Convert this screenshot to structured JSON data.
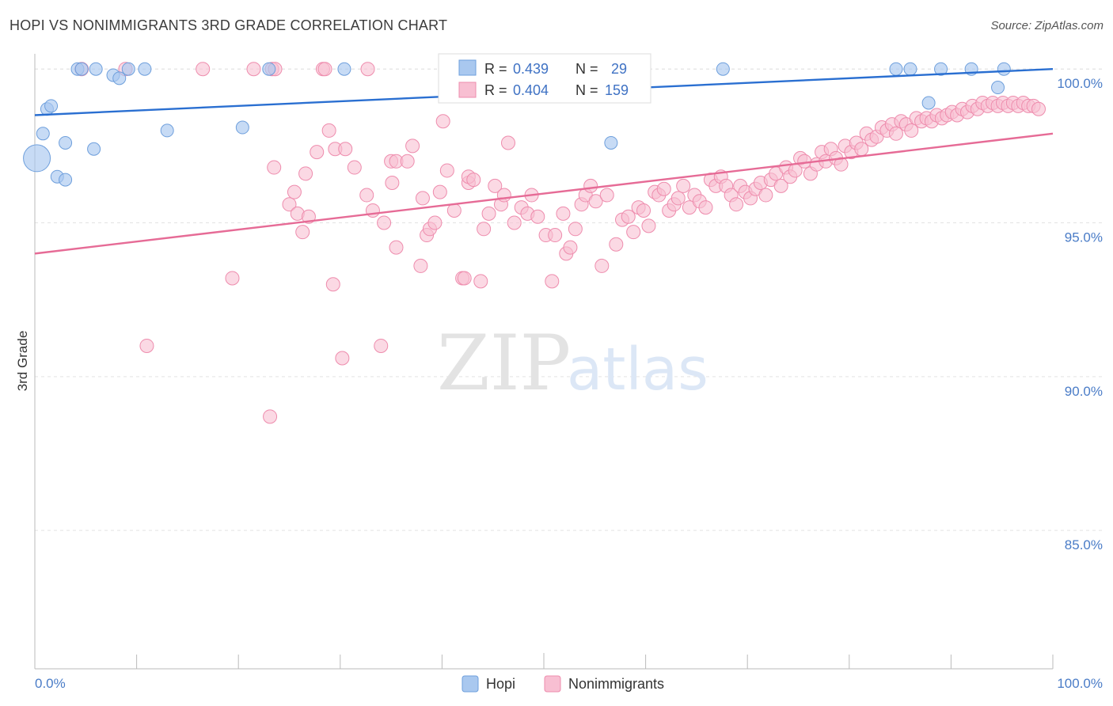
{
  "header": {
    "title": "HOPI VS NONIMMIGRANTS 3RD GRADE CORRELATION CHART",
    "source": "Source: ZipAtlas.com"
  },
  "watermark": {
    "part1": "ZIP",
    "part2": "atlas"
  },
  "legend_box": {
    "rows": [
      {
        "r_label": "R =",
        "r_value": "0.439",
        "n_label": "N =",
        "n_value": "29",
        "color": "#a9c8ef",
        "stroke": "#6e9fdc"
      },
      {
        "r_label": "R =",
        "r_value": "0.404",
        "n_label": "N =",
        "n_value": "159",
        "color": "#f8bfd2",
        "stroke": "#ee8cad"
      }
    ]
  },
  "bottom_legend": {
    "items": [
      "Hopi",
      "Nonimmigrants"
    ]
  },
  "colors": {
    "hopi_fill": "#a9c8ef",
    "hopi_stroke": "#6e9fdc",
    "hopi_line": "#2a6fd1",
    "nonimm_fill": "#f8bfd2",
    "nonimm_stroke": "#ee8cad",
    "nonimm_line": "#e66b96",
    "tick_text": "#4a7cc7",
    "grid": "#e3e3e3"
  },
  "chart_data": {
    "type": "scatter",
    "xlabel": "",
    "ylabel": "3rd Grade",
    "xlim": [
      0,
      100
    ],
    "ylim": [
      80.5,
      100.7
    ],
    "x_tick_labels": [
      "0.0%",
      "100.0%"
    ],
    "y_ticks": [
      85,
      90,
      95,
      100
    ],
    "y_tick_labels": [
      "85.0%",
      "90.0%",
      "95.0%",
      "100.0%"
    ],
    "grid": "horizontal dashed",
    "legend_placement": "top-center",
    "series": [
      {
        "name": "Hopi",
        "trend": {
          "x": [
            0,
            100
          ],
          "y": [
            98.5,
            100.0
          ]
        },
        "points": [
          [
            0.2,
            97.1
          ],
          [
            0.8,
            97.9
          ],
          [
            1.2,
            98.7
          ],
          [
            1.6,
            98.8
          ],
          [
            2.2,
            96.5
          ],
          [
            3.0,
            96.4
          ],
          [
            3.0,
            97.6
          ],
          [
            4.2,
            100.0
          ],
          [
            4.6,
            100.0
          ],
          [
            5.8,
            97.4
          ],
          [
            6.0,
            100.0
          ],
          [
            7.7,
            99.8
          ],
          [
            8.3,
            99.7
          ],
          [
            9.2,
            100.0
          ],
          [
            10.8,
            100.0
          ],
          [
            13.0,
            98.0
          ],
          [
            20.4,
            98.1
          ],
          [
            23.0,
            100.0
          ],
          [
            30.4,
            100.0
          ],
          [
            56.6,
            99.9
          ],
          [
            56.6,
            97.6
          ],
          [
            67.6,
            100.0
          ],
          [
            84.6,
            100.0
          ],
          [
            86.0,
            100.0
          ],
          [
            87.8,
            98.9
          ],
          [
            89.0,
            100.0
          ],
          [
            92.0,
            100.0
          ],
          [
            94.6,
            99.4
          ],
          [
            95.2,
            100.0
          ]
        ],
        "sizes": [
          17,
          8,
          8,
          8,
          8,
          8,
          8,
          8,
          8,
          8,
          8,
          8,
          8,
          8,
          8,
          8,
          8,
          8,
          8,
          8,
          8,
          8,
          8,
          8,
          8,
          8,
          8,
          8,
          8
        ]
      },
      {
        "name": "Nonimmigrants",
        "trend": {
          "x": [
            0,
            100
          ],
          "y": [
            94.0,
            97.9
          ]
        },
        "points": [
          [
            4.6,
            100.0
          ],
          [
            8.9,
            100.0
          ],
          [
            11.0,
            91.0
          ],
          [
            16.5,
            100.0
          ],
          [
            19.4,
            93.2
          ],
          [
            21.5,
            100.0
          ],
          [
            23.1,
            88.7
          ],
          [
            23.3,
            100.0
          ],
          [
            23.6,
            100.0
          ],
          [
            23.5,
            96.8
          ],
          [
            25.0,
            95.6
          ],
          [
            25.8,
            95.3
          ],
          [
            25.5,
            96.0
          ],
          [
            26.3,
            94.7
          ],
          [
            26.6,
            96.6
          ],
          [
            26.9,
            95.2
          ],
          [
            27.7,
            97.3
          ],
          [
            28.3,
            100.0
          ],
          [
            28.5,
            100.0
          ],
          [
            28.9,
            98.0
          ],
          [
            29.3,
            93.0
          ],
          [
            29.5,
            97.4
          ],
          [
            30.2,
            90.6
          ],
          [
            30.5,
            97.4
          ],
          [
            31.4,
            96.8
          ],
          [
            32.7,
            100.0
          ],
          [
            32.6,
            95.9
          ],
          [
            33.2,
            95.4
          ],
          [
            34.0,
            91.0
          ],
          [
            34.3,
            95.0
          ],
          [
            35.0,
            97.0
          ],
          [
            35.1,
            96.3
          ],
          [
            35.5,
            97.0
          ],
          [
            35.5,
            94.2
          ],
          [
            36.6,
            97.0
          ],
          [
            37.1,
            97.5
          ],
          [
            37.9,
            93.6
          ],
          [
            38.1,
            95.8
          ],
          [
            38.5,
            94.6
          ],
          [
            38.8,
            94.8
          ],
          [
            39.3,
            95.0
          ],
          [
            39.8,
            96.0
          ],
          [
            40.1,
            98.3
          ],
          [
            40.5,
            96.7
          ],
          [
            41.2,
            95.4
          ],
          [
            42.0,
            93.2
          ],
          [
            42.2,
            93.2
          ],
          [
            42.6,
            96.3
          ],
          [
            42.6,
            96.5
          ],
          [
            43.1,
            96.4
          ],
          [
            43.8,
            93.1
          ],
          [
            44.1,
            94.8
          ],
          [
            44.6,
            95.3
          ],
          [
            45.2,
            96.2
          ],
          [
            45.8,
            95.6
          ],
          [
            46.1,
            95.9
          ],
          [
            46.5,
            97.6
          ],
          [
            47.1,
            95.0
          ],
          [
            47.8,
            95.5
          ],
          [
            48.4,
            95.3
          ],
          [
            48.8,
            95.9
          ],
          [
            49.4,
            95.2
          ],
          [
            50.2,
            94.6
          ],
          [
            50.8,
            93.1
          ],
          [
            51.1,
            94.6
          ],
          [
            51.9,
            95.3
          ],
          [
            52.2,
            94.0
          ],
          [
            52.6,
            94.2
          ],
          [
            53.1,
            94.8
          ],
          [
            53.7,
            95.6
          ],
          [
            54.1,
            95.9
          ],
          [
            54.6,
            96.2
          ],
          [
            55.1,
            95.7
          ],
          [
            55.7,
            93.6
          ],
          [
            56.2,
            95.9
          ],
          [
            57.1,
            94.3
          ],
          [
            57.7,
            95.1
          ],
          [
            58.3,
            95.2
          ],
          [
            58.8,
            94.7
          ],
          [
            59.3,
            95.5
          ],
          [
            59.8,
            95.4
          ],
          [
            60.3,
            94.9
          ],
          [
            60.9,
            96.0
          ],
          [
            61.3,
            95.9
          ],
          [
            61.8,
            96.1
          ],
          [
            62.3,
            95.4
          ],
          [
            62.8,
            95.6
          ],
          [
            63.2,
            95.8
          ],
          [
            63.7,
            96.2
          ],
          [
            64.3,
            95.5
          ],
          [
            64.8,
            95.9
          ],
          [
            65.3,
            95.7
          ],
          [
            65.9,
            95.5
          ],
          [
            66.4,
            96.4
          ],
          [
            66.9,
            96.2
          ],
          [
            67.4,
            96.5
          ],
          [
            67.9,
            96.2
          ],
          [
            68.4,
            95.9
          ],
          [
            68.9,
            95.6
          ],
          [
            69.3,
            96.2
          ],
          [
            69.8,
            96.0
          ],
          [
            70.3,
            95.8
          ],
          [
            70.8,
            96.1
          ],
          [
            71.3,
            96.3
          ],
          [
            71.8,
            95.9
          ],
          [
            72.3,
            96.4
          ],
          [
            72.8,
            96.6
          ],
          [
            73.3,
            96.2
          ],
          [
            73.8,
            96.8
          ],
          [
            74.2,
            96.5
          ],
          [
            74.7,
            96.7
          ],
          [
            75.2,
            97.1
          ],
          [
            75.6,
            97.0
          ],
          [
            76.2,
            96.6
          ],
          [
            76.8,
            96.9
          ],
          [
            77.3,
            97.3
          ],
          [
            77.7,
            97.0
          ],
          [
            78.2,
            97.4
          ],
          [
            78.7,
            97.1
          ],
          [
            79.2,
            96.9
          ],
          [
            79.6,
            97.5
          ],
          [
            80.2,
            97.3
          ],
          [
            80.7,
            97.6
          ],
          [
            81.2,
            97.4
          ],
          [
            81.7,
            97.9
          ],
          [
            82.2,
            97.7
          ],
          [
            82.7,
            97.8
          ],
          [
            83.2,
            98.1
          ],
          [
            83.7,
            98.0
          ],
          [
            84.2,
            98.2
          ],
          [
            84.6,
            97.9
          ],
          [
            85.1,
            98.3
          ],
          [
            85.6,
            98.2
          ],
          [
            86.1,
            98.0
          ],
          [
            86.6,
            98.4
          ],
          [
            87.1,
            98.3
          ],
          [
            87.6,
            98.4
          ],
          [
            88.1,
            98.3
          ],
          [
            88.6,
            98.5
          ],
          [
            89.1,
            98.4
          ],
          [
            89.6,
            98.5
          ],
          [
            90.1,
            98.6
          ],
          [
            90.6,
            98.5
          ],
          [
            91.1,
            98.7
          ],
          [
            91.6,
            98.6
          ],
          [
            92.1,
            98.8
          ],
          [
            92.6,
            98.7
          ],
          [
            93.1,
            98.9
          ],
          [
            93.6,
            98.8
          ],
          [
            94.1,
            98.9
          ],
          [
            94.6,
            98.8
          ],
          [
            95.1,
            98.9
          ],
          [
            95.6,
            98.8
          ],
          [
            96.1,
            98.9
          ],
          [
            96.6,
            98.8
          ],
          [
            97.1,
            98.9
          ],
          [
            97.6,
            98.8
          ],
          [
            98.1,
            98.8
          ],
          [
            98.6,
            98.7
          ]
        ],
        "sizes": [
          8
        ]
      }
    ]
  }
}
